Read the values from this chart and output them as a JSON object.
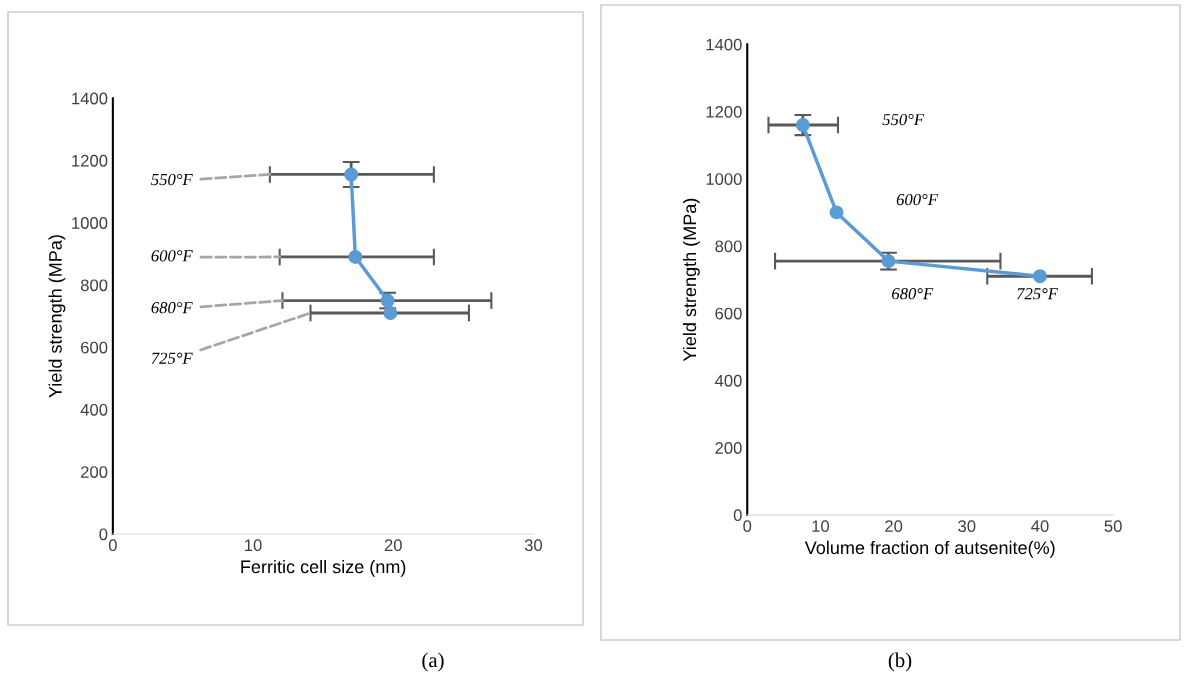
{
  "chart_data": [
    {
      "type": "line",
      "xlabel": "Ferritic cell size (nm)",
      "ylabel": "Yield strength (MPa)",
      "xlim": [
        0,
        30
      ],
      "xticks": [
        0,
        10,
        20,
        30
      ],
      "ylim": [
        0,
        1400
      ],
      "yticks": [
        0,
        200,
        400,
        600,
        800,
        1000,
        1200,
        1400
      ],
      "marker": "circle",
      "grid": false,
      "legend": false,
      "series": [
        {
          "color": "#5b9bd5",
          "x": [
            17.0,
            17.3,
            19.6,
            19.8
          ],
          "values": [
            1155,
            890,
            750,
            710
          ],
          "errors": [
            40,
            null,
            25,
            null
          ],
          "xerrors": [
            [
              11.2,
              22.9
            ],
            [
              11.9,
              22.9
            ],
            [
              12.1,
              27.0
            ],
            [
              14.1,
              25.4
            ]
          ]
        }
      ],
      "annotations": [
        {
          "text": "550°F",
          "x": 11.2,
          "y": 1155
        },
        {
          "text": "600°F",
          "x": 11.9,
          "y": 890
        },
        {
          "text": "680°F",
          "x": 12.1,
          "y": 750
        },
        {
          "text": "725°F",
          "x": 14.1,
          "y": 710
        },
        "(a)"
      ]
    },
    {
      "type": "line",
      "xlabel": "Volume fraction of autsenite(%)",
      "ylabel": "Yield strength (MPa)",
      "xlim": [
        0,
        50
      ],
      "xticks": [
        0,
        10,
        20,
        30,
        40,
        50
      ],
      "ylim": [
        0,
        1400
      ],
      "yticks": [
        0,
        200,
        400,
        600,
        800,
        1000,
        1200,
        1400
      ],
      "marker": "circle",
      "grid": false,
      "legend": false,
      "series": [
        {
          "color": "#5b9bd5",
          "x": [
            7.6,
            12.2,
            19.3,
            40.0
          ],
          "values": [
            1160,
            900,
            755,
            710
          ],
          "errors": [
            30,
            null,
            25,
            null
          ],
          "xerrors": [
            [
              2.9,
              12.4
            ],
            null,
            [
              3.8,
              34.6
            ],
            [
              32.8,
              47.1
            ]
          ]
        }
      ],
      "annotations": [
        "550°F",
        "600°F",
        "680°F",
        "725°F",
        "(b)"
      ]
    }
  ]
}
